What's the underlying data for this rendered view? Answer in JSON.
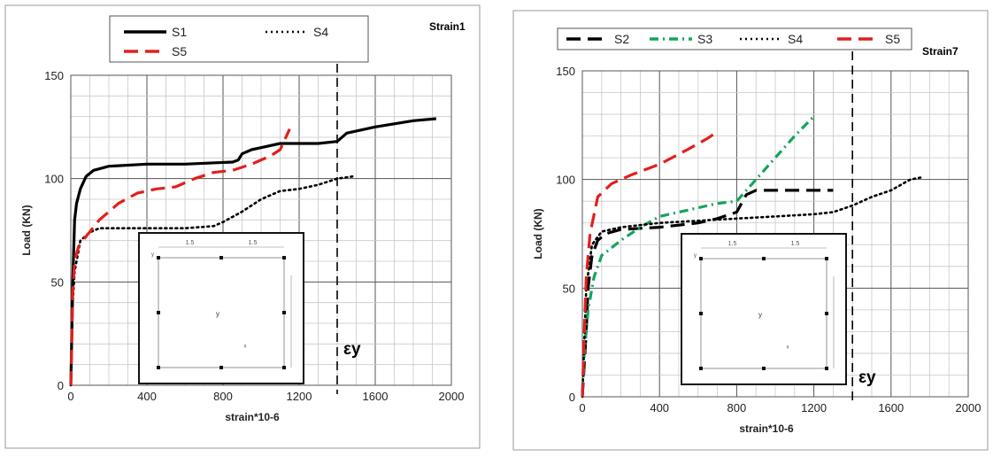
{
  "chart_data": [
    {
      "type": "line",
      "title": "Strain1",
      "xlabel": "strain*10-6",
      "ylabel": "Load (KN)",
      "xlim": [
        0,
        2000
      ],
      "ylim": [
        0,
        150
      ],
      "xticks": [
        "0",
        "400",
        "800",
        "1200",
        "1600",
        "2000"
      ],
      "yticks": [
        "0",
        "50",
        "100",
        "150"
      ],
      "grid": true,
      "legend_position": "top",
      "yield_marker": {
        "x": 1400,
        "label": "εy"
      },
      "series": [
        {
          "name": "S1",
          "color": "#000000",
          "style": "solid",
          "x": [
            0,
            5,
            10,
            20,
            30,
            50,
            80,
            120,
            200,
            400,
            600,
            850,
            880,
            900,
            950,
            1000,
            1100,
            1300,
            1400,
            1450,
            1600,
            1800,
            1920
          ],
          "y": [
            0,
            25,
            50,
            80,
            88,
            95,
            101,
            104,
            106,
            107,
            107,
            108,
            109,
            112,
            114,
            115,
            117,
            117,
            118,
            122,
            125,
            128,
            129
          ]
        },
        {
          "name": "S4",
          "color": "#000000",
          "style": "dotted",
          "x": [
            0,
            10,
            20,
            50,
            100,
            150,
            300,
            600,
            750,
            800,
            900,
            1000,
            1100,
            1200,
            1300,
            1400,
            1480
          ],
          "y": [
            0,
            40,
            55,
            70,
            74,
            76,
            76,
            76,
            77,
            79,
            84,
            90,
            94,
            95,
            97,
            100,
            101
          ]
        },
        {
          "name": "S5",
          "color": "#e0201f",
          "style": "dashed",
          "x": [
            0,
            5,
            10,
            20,
            40,
            80,
            150,
            250,
            350,
            450,
            550,
            650,
            750,
            850,
            950,
            1050,
            1100,
            1150
          ],
          "y": [
            0,
            20,
            45,
            60,
            67,
            72,
            80,
            88,
            93,
            95,
            96,
            100,
            103,
            104,
            107,
            111,
            114,
            124
          ]
        }
      ]
    },
    {
      "type": "line",
      "title": "Strain7",
      "xlabel": "strain*10-6",
      "ylabel": "Load (KN)",
      "xlim": [
        0,
        2000
      ],
      "ylim": [
        0,
        150
      ],
      "xticks": [
        "0",
        "400",
        "800",
        "1200",
        "1600",
        "2000"
      ],
      "yticks": [
        "0",
        "50",
        "100",
        "150"
      ],
      "grid": true,
      "legend_position": "top",
      "yield_marker": {
        "x": 1400,
        "label": "εy"
      },
      "series": [
        {
          "name": "S2",
          "color": "#000000",
          "style": "dashed",
          "x": [
            0,
            10,
            20,
            30,
            50,
            80,
            120,
            200,
            400,
            600,
            700,
            800,
            850,
            900,
            1000,
            1300
          ],
          "y": [
            0,
            15,
            30,
            50,
            65,
            72,
            75,
            77,
            78,
            80,
            82,
            85,
            93,
            95,
            95,
            95
          ]
        },
        {
          "name": "S3",
          "color": "#16a35c",
          "style": "dashdot",
          "x": [
            0,
            10,
            30,
            60,
            100,
            200,
            300,
            400,
            500,
            600,
            700,
            800,
            900,
            1000,
            1100,
            1200
          ],
          "y": [
            0,
            20,
            40,
            55,
            65,
            72,
            78,
            83,
            85,
            87,
            89,
            90,
            100,
            110,
            120,
            129
          ]
        },
        {
          "name": "S4",
          "color": "#000000",
          "style": "dotted",
          "x": [
            0,
            20,
            50,
            100,
            200,
            400,
            800,
            1000,
            1200,
            1300,
            1400,
            1500,
            1600,
            1700,
            1760
          ],
          "y": [
            0,
            50,
            70,
            76,
            78,
            80,
            82,
            83,
            84,
            85,
            88,
            92,
            95,
            100,
            101
          ]
        },
        {
          "name": "S5",
          "color": "#e0201f",
          "style": "dashed",
          "x": [
            0,
            10,
            20,
            40,
            80,
            150,
            250,
            400,
            550,
            650,
            700
          ],
          "y": [
            0,
            30,
            55,
            75,
            92,
            98,
            102,
            107,
            114,
            119,
            122
          ]
        }
      ]
    }
  ],
  "inset": {
    "dim_label": "1.5",
    "left_axis_label": "y",
    "center_label": "y",
    "corner_label": "x"
  }
}
